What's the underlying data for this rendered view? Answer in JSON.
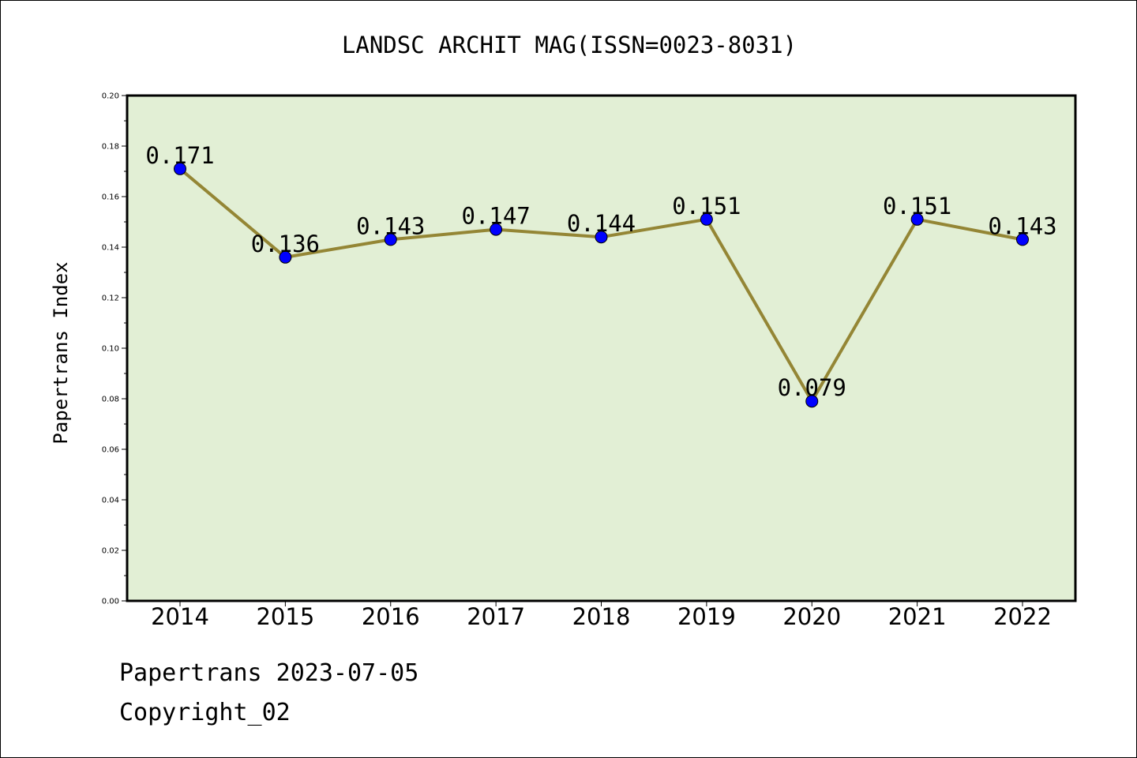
{
  "chart_data": {
    "type": "line",
    "title": "LANDSC ARCHIT MAG(ISSN=0023-8031)",
    "xlabel": "",
    "ylabel": "Papertrans Index",
    "categories": [
      "2014",
      "2015",
      "2016",
      "2017",
      "2018",
      "2019",
      "2020",
      "2021",
      "2022"
    ],
    "values": [
      0.171,
      0.136,
      0.143,
      0.147,
      0.144,
      0.151,
      0.079,
      0.151,
      0.143
    ],
    "data_labels": [
      "0.171",
      "0.136",
      "0.143",
      "0.147",
      "0.144",
      "0.151",
      "0.079",
      "0.151",
      "0.143"
    ],
    "ylim": [
      0,
      0.2
    ],
    "yticks": [
      "0.00",
      "0.02",
      "0.04",
      "0.06",
      "0.08",
      "0.10",
      "0.12",
      "0.14",
      "0.16",
      "0.18",
      "0.20"
    ],
    "grid": false,
    "legend": "none",
    "colors": {
      "plot_background": "#e2efd5",
      "line": "#948635",
      "marker": "#0000ff"
    }
  },
  "footer": {
    "source": "Papertrans 2023-07-05",
    "copyright": "Copyright_02"
  }
}
